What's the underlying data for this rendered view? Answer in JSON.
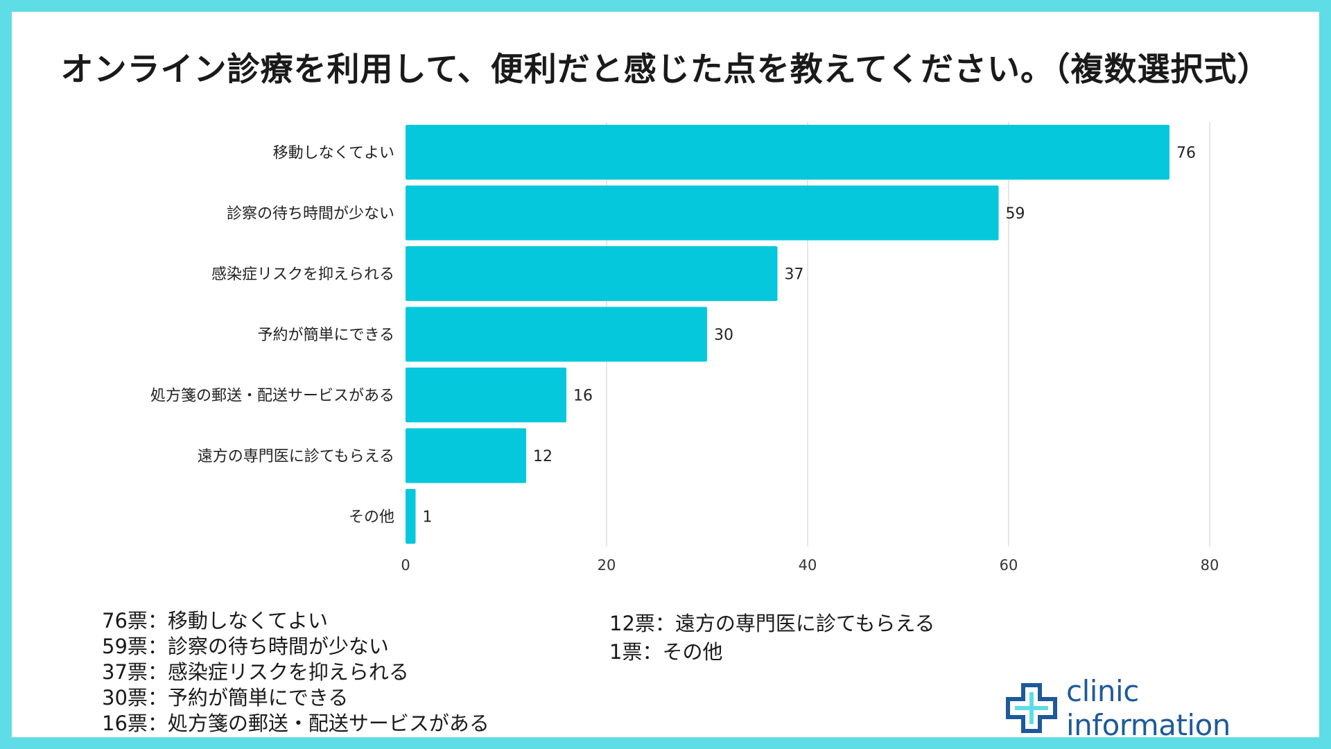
{
  "title": "オンライン診療を利用して、便利だと感じた点を教えてください。（複数選択式）",
  "chart_data": {
    "type": "bar",
    "orientation": "horizontal",
    "categories": [
      "移動しなくてよい",
      "診察の待ち時間が少ない",
      "感染症リスクを抑えられる",
      "予約が簡単にできる",
      "処方箋の郵送・配送サービスがある",
      "遠方の専門医に診てもらえる",
      "その他"
    ],
    "values": [
      76,
      59,
      37,
      30,
      16,
      12,
      1
    ],
    "xlim": [
      0,
      80
    ],
    "xticks": [
      0,
      20,
      40,
      60,
      80
    ],
    "grid": true,
    "bar_color": "#05c8dc",
    "data_labels": true
  },
  "summary": {
    "left": [
      "76票：移動しなくてよい",
      "59票：診察の待ち時間が少ない",
      "37票：感染症リスクを抑えられる",
      "30票：予約が簡単にできる",
      "16票：処方箋の郵送・配送サービスがある"
    ],
    "right": [
      "12票：遠方の専門医に診てもらえる",
      "1票：その他"
    ]
  },
  "logo": {
    "text": "clinic information",
    "color": "#1e5a9a",
    "icon": "medical-cross-icon"
  },
  "colors": {
    "border": "#5fdde6",
    "background": "#ffffff",
    "grid": "#dddddd"
  }
}
